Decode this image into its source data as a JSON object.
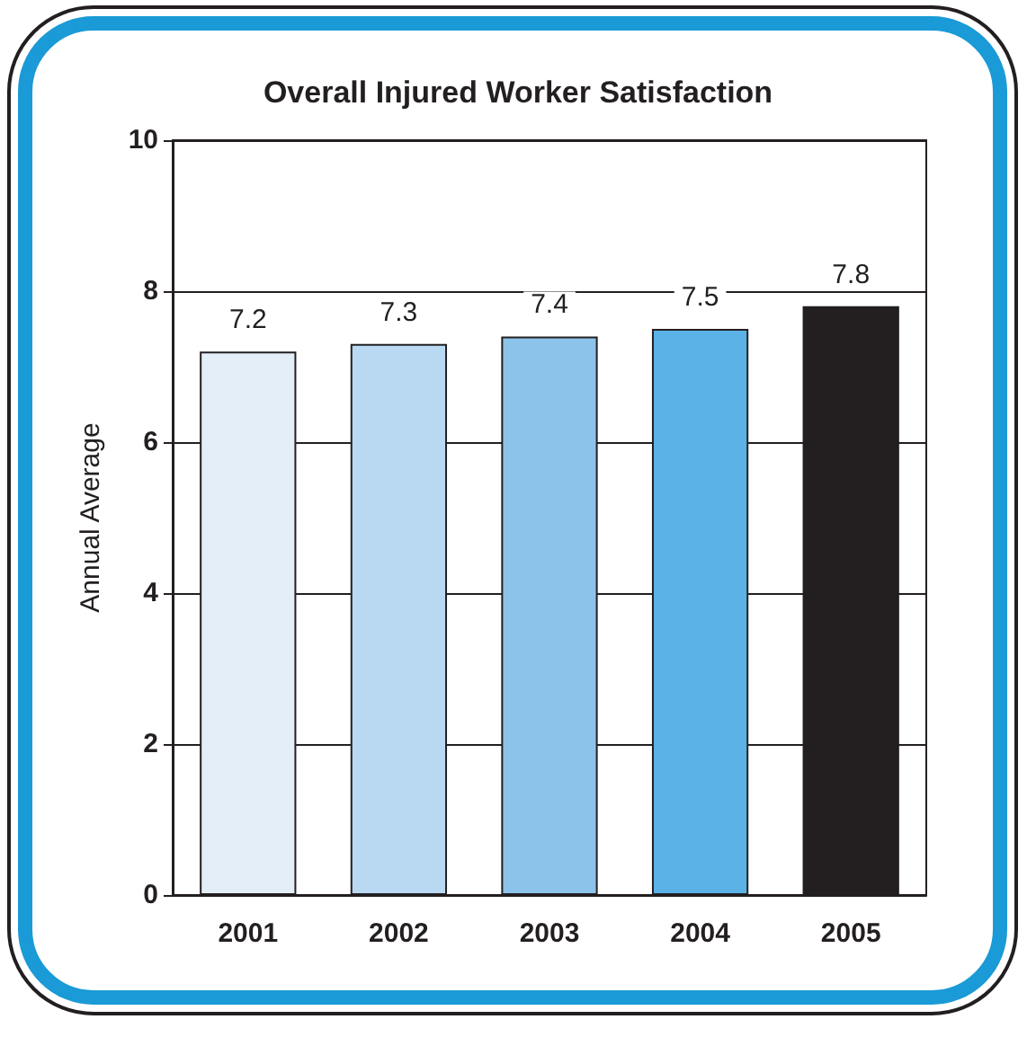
{
  "chart_data": {
    "type": "bar",
    "title": "Overall Injured Worker Satisfaction",
    "ylabel": "Annual Average",
    "categories": [
      "2001",
      "2002",
      "2003",
      "2004",
      "2005"
    ],
    "values": [
      7.2,
      7.3,
      7.4,
      7.5,
      7.8
    ],
    "colors": [
      "#e3eef9",
      "#b9d9f2",
      "#8cc3ea",
      "#5ab2e6",
      "#231f20"
    ],
    "ylim": [
      0,
      10
    ],
    "yticks": [
      0,
      2,
      4,
      6,
      8,
      10
    ],
    "grid": "y",
    "data_labels": true
  }
}
